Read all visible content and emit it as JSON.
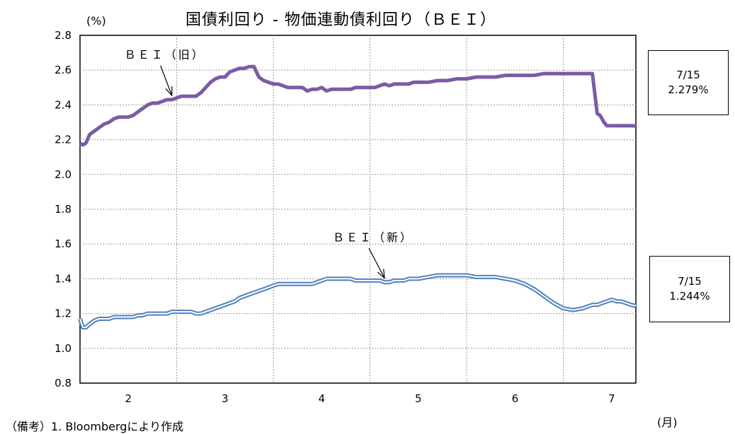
{
  "chart_data": {
    "type": "line",
    "title": "国債利回り - 物価連動債利回り（ＢＥＩ）",
    "ylabel": "(%)",
    "xlabel": "(月)",
    "ylim": [
      0.8,
      2.8
    ],
    "yticks": [
      "2.8",
      "2.6",
      "2.4",
      "2.2",
      "2.0",
      "1.8",
      "1.6",
      "1.4",
      "1.2",
      "1.0",
      "0.8"
    ],
    "xlim": [
      1.5,
      7.25
    ],
    "xticks": [
      {
        "x": 2,
        "label": "2"
      },
      {
        "x": 3,
        "label": "3"
      },
      {
        "x": 4,
        "label": "4"
      },
      {
        "x": 5,
        "label": "5"
      },
      {
        "x": 6,
        "label": "6"
      },
      {
        "x": 7,
        "label": "7"
      }
    ],
    "grid": true,
    "series": [
      {
        "name": "ＢＥＩ（旧）",
        "color": "#7B5BA6",
        "style": "thick",
        "x": [
          1.5,
          1.53,
          1.56,
          1.6,
          1.65,
          1.7,
          1.75,
          1.8,
          1.85,
          1.9,
          1.95,
          2.0,
          2.05,
          2.1,
          2.15,
          2.2,
          2.25,
          2.3,
          2.35,
          2.4,
          2.45,
          2.5,
          2.55,
          2.6,
          2.65,
          2.7,
          2.75,
          2.8,
          2.85,
          2.9,
          2.95,
          3.0,
          3.05,
          3.1,
          3.15,
          3.2,
          3.25,
          3.3,
          3.35,
          3.4,
          3.45,
          3.5,
          3.55,
          3.6,
          3.65,
          3.7,
          3.75,
          3.8,
          3.85,
          3.9,
          3.95,
          4.0,
          4.05,
          4.1,
          4.15,
          4.2,
          4.25,
          4.3,
          4.35,
          4.4,
          4.45,
          4.5,
          4.55,
          4.6,
          4.65,
          4.7,
          4.75,
          4.8,
          4.85,
          4.9,
          4.95,
          5.0,
          5.1,
          5.2,
          5.3,
          5.4,
          5.5,
          5.6,
          5.7,
          5.8,
          5.9,
          6.0,
          6.1,
          6.2,
          6.3,
          6.4,
          6.5,
          6.6,
          6.7,
          6.8,
          6.85,
          6.88,
          6.92,
          6.95,
          7.0,
          7.05,
          7.1,
          7.15,
          7.2,
          7.25
        ],
        "values": [
          2.18,
          2.17,
          2.18,
          2.23,
          2.25,
          2.27,
          2.29,
          2.3,
          2.32,
          2.33,
          2.33,
          2.33,
          2.34,
          2.36,
          2.38,
          2.4,
          2.41,
          2.41,
          2.42,
          2.43,
          2.43,
          2.44,
          2.45,
          2.45,
          2.45,
          2.45,
          2.47,
          2.5,
          2.53,
          2.55,
          2.56,
          2.56,
          2.59,
          2.6,
          2.61,
          2.61,
          2.62,
          2.62,
          2.56,
          2.54,
          2.53,
          2.52,
          2.52,
          2.51,
          2.5,
          2.5,
          2.5,
          2.5,
          2.48,
          2.49,
          2.49,
          2.5,
          2.48,
          2.49,
          2.49,
          2.49,
          2.49,
          2.49,
          2.5,
          2.5,
          2.5,
          2.5,
          2.5,
          2.51,
          2.52,
          2.51,
          2.52,
          2.52,
          2.52,
          2.52,
          2.53,
          2.53,
          2.53,
          2.54,
          2.54,
          2.55,
          2.55,
          2.56,
          2.56,
          2.56,
          2.57,
          2.57,
          2.57,
          2.57,
          2.58,
          2.58,
          2.58,
          2.58,
          2.58,
          2.58,
          2.35,
          2.34,
          2.3,
          2.28,
          2.28,
          2.28,
          2.28,
          2.28,
          2.28,
          2.279
        ]
      },
      {
        "name": "ＢＥＩ（新）",
        "color": "#4F81BD",
        "style": "double",
        "x": [
          1.5,
          1.53,
          1.56,
          1.6,
          1.65,
          1.7,
          1.75,
          1.8,
          1.85,
          1.9,
          1.95,
          2.0,
          2.05,
          2.1,
          2.15,
          2.2,
          2.25,
          2.3,
          2.35,
          2.4,
          2.45,
          2.5,
          2.55,
          2.6,
          2.65,
          2.7,
          2.75,
          2.8,
          2.85,
          2.9,
          2.95,
          3.0,
          3.05,
          3.1,
          3.15,
          3.2,
          3.25,
          3.3,
          3.35,
          3.4,
          3.45,
          3.5,
          3.55,
          3.6,
          3.65,
          3.7,
          3.75,
          3.8,
          3.85,
          3.9,
          3.95,
          4.0,
          4.05,
          4.1,
          4.15,
          4.2,
          4.25,
          4.3,
          4.35,
          4.4,
          4.45,
          4.5,
          4.55,
          4.6,
          4.65,
          4.7,
          4.75,
          4.8,
          4.85,
          4.9,
          4.95,
          5.0,
          5.1,
          5.2,
          5.3,
          5.4,
          5.5,
          5.6,
          5.7,
          5.8,
          5.9,
          6.0,
          6.1,
          6.2,
          6.3,
          6.4,
          6.5,
          6.6,
          6.7,
          6.75,
          6.8,
          6.85,
          6.9,
          6.95,
          7.0,
          7.05,
          7.1,
          7.15,
          7.2,
          7.25
        ],
        "values": [
          1.17,
          1.12,
          1.12,
          1.14,
          1.16,
          1.17,
          1.17,
          1.17,
          1.18,
          1.18,
          1.18,
          1.18,
          1.18,
          1.19,
          1.19,
          1.2,
          1.2,
          1.2,
          1.2,
          1.2,
          1.21,
          1.21,
          1.21,
          1.21,
          1.21,
          1.2,
          1.2,
          1.21,
          1.22,
          1.23,
          1.24,
          1.25,
          1.26,
          1.27,
          1.29,
          1.3,
          1.31,
          1.32,
          1.33,
          1.34,
          1.35,
          1.36,
          1.37,
          1.37,
          1.37,
          1.37,
          1.37,
          1.37,
          1.37,
          1.37,
          1.38,
          1.39,
          1.4,
          1.4,
          1.4,
          1.4,
          1.4,
          1.4,
          1.39,
          1.39,
          1.39,
          1.39,
          1.39,
          1.39,
          1.38,
          1.38,
          1.39,
          1.39,
          1.39,
          1.4,
          1.4,
          1.4,
          1.41,
          1.42,
          1.42,
          1.42,
          1.42,
          1.41,
          1.41,
          1.41,
          1.4,
          1.39,
          1.37,
          1.34,
          1.3,
          1.26,
          1.23,
          1.22,
          1.23,
          1.24,
          1.25,
          1.25,
          1.26,
          1.27,
          1.28,
          1.27,
          1.27,
          1.26,
          1.25,
          1.244
        ]
      }
    ],
    "annotations": [
      {
        "label": "ＢＥＩ（旧）",
        "series": 0,
        "x": 2.45
      },
      {
        "label": "ＢＥＩ（新）",
        "series": 1,
        "x": 4.65
      }
    ],
    "callouts": [
      {
        "date": "7/15",
        "value": "2.279%"
      },
      {
        "date": "7/15",
        "value": "1.244%"
      }
    ],
    "note": "（備考）1. Bloombergにより作成"
  }
}
